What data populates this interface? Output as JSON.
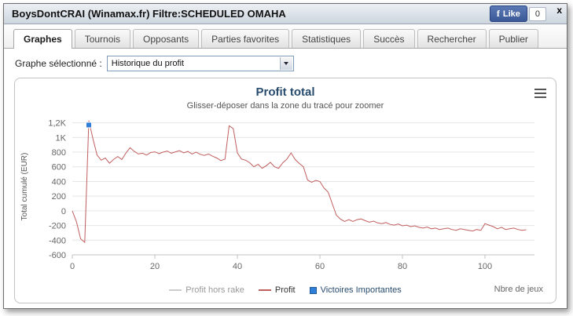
{
  "window": {
    "title": "BoysDontCRAI (Winamax.fr) Filtre:SCHEDULED OMAHA",
    "close_label": "x",
    "facebook_like": {
      "logo": "f",
      "label": "Like",
      "count": "0"
    }
  },
  "tabs": [
    {
      "label": "Graphes",
      "active": true
    },
    {
      "label": "Tournois",
      "active": false
    },
    {
      "label": "Opposants",
      "active": false
    },
    {
      "label": "Parties favorites",
      "active": false
    },
    {
      "label": "Statistiques",
      "active": false
    },
    {
      "label": "Succès",
      "active": false
    },
    {
      "label": "Rechercher",
      "active": false
    },
    {
      "label": "Publier",
      "active": false
    }
  ],
  "graph_selector": {
    "label": "Graphe sélectionné :",
    "value": "Historique du profit"
  },
  "chart_data": {
    "type": "line",
    "title": "Profit total",
    "subtitle": "Glisser-déposer dans la zone du tracé pour zoomer",
    "xlabel": "Nbre de jeux",
    "ylabel": "Total cumulé (EUR)",
    "xlim": [
      0,
      112
    ],
    "ylim": [
      -600,
      1260
    ],
    "grid": true,
    "legend_position": "bottom",
    "x_ticks": [
      0,
      20,
      40,
      60,
      80,
      100
    ],
    "y_ticks": [
      {
        "value": 1200,
        "label": "1,2K"
      },
      {
        "value": 1000,
        "label": "1K"
      },
      {
        "value": 800,
        "label": "800"
      },
      {
        "value": 600,
        "label": "600"
      },
      {
        "value": 400,
        "label": "400"
      },
      {
        "value": 200,
        "label": "200"
      },
      {
        "value": 0,
        "label": "0"
      },
      {
        "value": -200,
        "label": "-200"
      },
      {
        "value": -400,
        "label": "-400"
      },
      {
        "value": -600,
        "label": "-600"
      }
    ],
    "series": [
      {
        "name": "Profit hors rake",
        "type": "line",
        "color": "#cccccc",
        "label_color": "#999999",
        "points": []
      },
      {
        "name": "Profit",
        "type": "line",
        "color": "#c15e5e",
        "label_color": "#333333",
        "points": [
          [
            0,
            0
          ],
          [
            1,
            -150
          ],
          [
            2,
            -380
          ],
          [
            3,
            -430
          ],
          [
            4,
            1230
          ],
          [
            5,
            980
          ],
          [
            6,
            760
          ],
          [
            7,
            690
          ],
          [
            8,
            720
          ],
          [
            9,
            650
          ],
          [
            10,
            700
          ],
          [
            11,
            740
          ],
          [
            12,
            700
          ],
          [
            13,
            790
          ],
          [
            14,
            860
          ],
          [
            15,
            810
          ],
          [
            16,
            775
          ],
          [
            17,
            785
          ],
          [
            18,
            760
          ],
          [
            19,
            795
          ],
          [
            20,
            805
          ],
          [
            21,
            780
          ],
          [
            22,
            800
          ],
          [
            23,
            815
          ],
          [
            24,
            785
          ],
          [
            25,
            805
          ],
          [
            26,
            820
          ],
          [
            27,
            790
          ],
          [
            28,
            810
          ],
          [
            29,
            775
          ],
          [
            30,
            800
          ],
          [
            31,
            770
          ],
          [
            32,
            755
          ],
          [
            33,
            775
          ],
          [
            34,
            745
          ],
          [
            35,
            720
          ],
          [
            36,
            685
          ],
          [
            37,
            705
          ],
          [
            38,
            1160
          ],
          [
            39,
            1120
          ],
          [
            40,
            790
          ],
          [
            41,
            705
          ],
          [
            42,
            690
          ],
          [
            43,
            655
          ],
          [
            44,
            600
          ],
          [
            45,
            635
          ],
          [
            46,
            580
          ],
          [
            47,
            615
          ],
          [
            48,
            660
          ],
          [
            49,
            600
          ],
          [
            50,
            580
          ],
          [
            51,
            655
          ],
          [
            52,
            705
          ],
          [
            53,
            790
          ],
          [
            54,
            700
          ],
          [
            55,
            645
          ],
          [
            56,
            600
          ],
          [
            57,
            420
          ],
          [
            58,
            390
          ],
          [
            59,
            415
          ],
          [
            60,
            400
          ],
          [
            61,
            310
          ],
          [
            62,
            255
          ],
          [
            63,
            95
          ],
          [
            64,
            -60
          ],
          [
            65,
            -115
          ],
          [
            66,
            -145
          ],
          [
            67,
            -120
          ],
          [
            68,
            -145
          ],
          [
            69,
            -120
          ],
          [
            70,
            -110
          ],
          [
            71,
            -135
          ],
          [
            72,
            -155
          ],
          [
            73,
            -140
          ],
          [
            74,
            -165
          ],
          [
            75,
            -175
          ],
          [
            76,
            -160
          ],
          [
            77,
            -185
          ],
          [
            78,
            -195
          ],
          [
            79,
            -180
          ],
          [
            80,
            -205
          ],
          [
            81,
            -195
          ],
          [
            82,
            -215
          ],
          [
            83,
            -205
          ],
          [
            84,
            -225
          ],
          [
            85,
            -235
          ],
          [
            86,
            -220
          ],
          [
            87,
            -245
          ],
          [
            88,
            -235
          ],
          [
            89,
            -255
          ],
          [
            90,
            -245
          ],
          [
            91,
            -235
          ],
          [
            92,
            -255
          ],
          [
            93,
            -265
          ],
          [
            94,
            -245
          ],
          [
            95,
            -255
          ],
          [
            96,
            -265
          ],
          [
            97,
            -275
          ],
          [
            98,
            -255
          ],
          [
            99,
            -265
          ],
          [
            100,
            -175
          ],
          [
            101,
            -195
          ],
          [
            102,
            -215
          ],
          [
            103,
            -245
          ],
          [
            104,
            -225
          ],
          [
            105,
            -255
          ],
          [
            106,
            -245
          ],
          [
            107,
            -235
          ],
          [
            108,
            -255
          ],
          [
            109,
            -265
          ],
          [
            110,
            -258
          ]
        ]
      },
      {
        "name": "Victoires Importantes",
        "type": "square-marker",
        "color": "#2f7ed8",
        "label_color": "#274b6d",
        "points": [
          [
            4,
            1170
          ]
        ]
      }
    ]
  }
}
